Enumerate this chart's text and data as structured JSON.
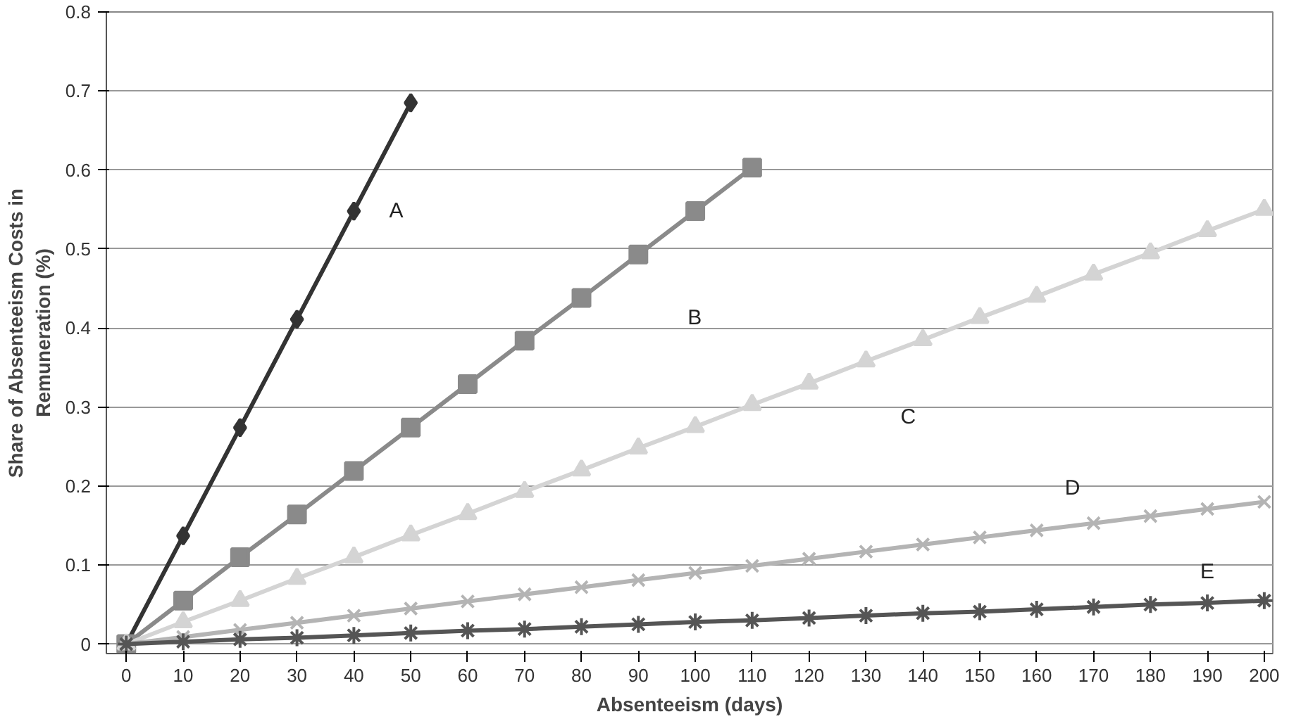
{
  "chart_data": {
    "type": "line",
    "xlabel": "Absenteeism (days)",
    "ylabel": "Share of Absenteeism Costs in\nRemuneration (%)",
    "xlim": [
      -3.5,
      201.5
    ],
    "ylim": [
      -0.012,
      0.8
    ],
    "xticks": [
      0,
      10,
      20,
      30,
      40,
      50,
      60,
      70,
      80,
      90,
      100,
      110,
      120,
      130,
      140,
      150,
      160,
      170,
      180,
      190,
      200
    ],
    "yticks": [
      0,
      0.1,
      0.2,
      0.3,
      0.4,
      0.5,
      0.6,
      0.7,
      0.8
    ],
    "grid": "y",
    "series": [
      {
        "name": "A",
        "color": "#333333",
        "marker": "diamond",
        "x": [
          0,
          10,
          20,
          30,
          40,
          50
        ],
        "values": [
          0,
          0.137,
          0.274,
          0.411,
          0.548,
          0.685
        ]
      },
      {
        "name": "B",
        "color": "#8a8a8a",
        "marker": "square",
        "x": [
          0,
          10,
          20,
          30,
          40,
          50,
          60,
          70,
          80,
          90,
          100,
          110
        ],
        "values": [
          0,
          0.055,
          0.11,
          0.164,
          0.219,
          0.274,
          0.329,
          0.384,
          0.438,
          0.493,
          0.548,
          0.603
        ]
      },
      {
        "name": "C",
        "color": "#d4d4d4",
        "marker": "triangle",
        "x": [
          0,
          10,
          20,
          30,
          40,
          50,
          60,
          70,
          80,
          90,
          100,
          110,
          120,
          130,
          140,
          150,
          160,
          170,
          180,
          190,
          200
        ],
        "values": [
          0,
          0.028,
          0.055,
          0.083,
          0.11,
          0.138,
          0.165,
          0.193,
          0.22,
          0.248,
          0.275,
          0.303,
          0.33,
          0.358,
          0.385,
          0.413,
          0.44,
          0.468,
          0.495,
          0.523,
          0.55
        ]
      },
      {
        "name": "D",
        "color": "#b4b4b4",
        "marker": "x",
        "x": [
          0,
          10,
          20,
          30,
          40,
          50,
          60,
          70,
          80,
          90,
          100,
          110,
          120,
          130,
          140,
          150,
          160,
          170,
          180,
          190,
          200
        ],
        "values": [
          0,
          0.009,
          0.018,
          0.027,
          0.036,
          0.045,
          0.054,
          0.063,
          0.072,
          0.081,
          0.09,
          0.099,
          0.108,
          0.117,
          0.126,
          0.135,
          0.144,
          0.153,
          0.162,
          0.171,
          0.18
        ]
      },
      {
        "name": "E",
        "color": "#555555",
        "marker": "cross",
        "x": [
          0,
          10,
          20,
          30,
          40,
          50,
          60,
          70,
          80,
          90,
          100,
          110,
          120,
          130,
          140,
          150,
          160,
          170,
          180,
          190,
          200
        ],
        "values": [
          0,
          0.003,
          0.006,
          0.008,
          0.011,
          0.014,
          0.017,
          0.019,
          0.022,
          0.025,
          0.028,
          0.03,
          0.033,
          0.036,
          0.039,
          0.041,
          0.044,
          0.047,
          0.05,
          0.052,
          0.055
        ]
      }
    ]
  }
}
